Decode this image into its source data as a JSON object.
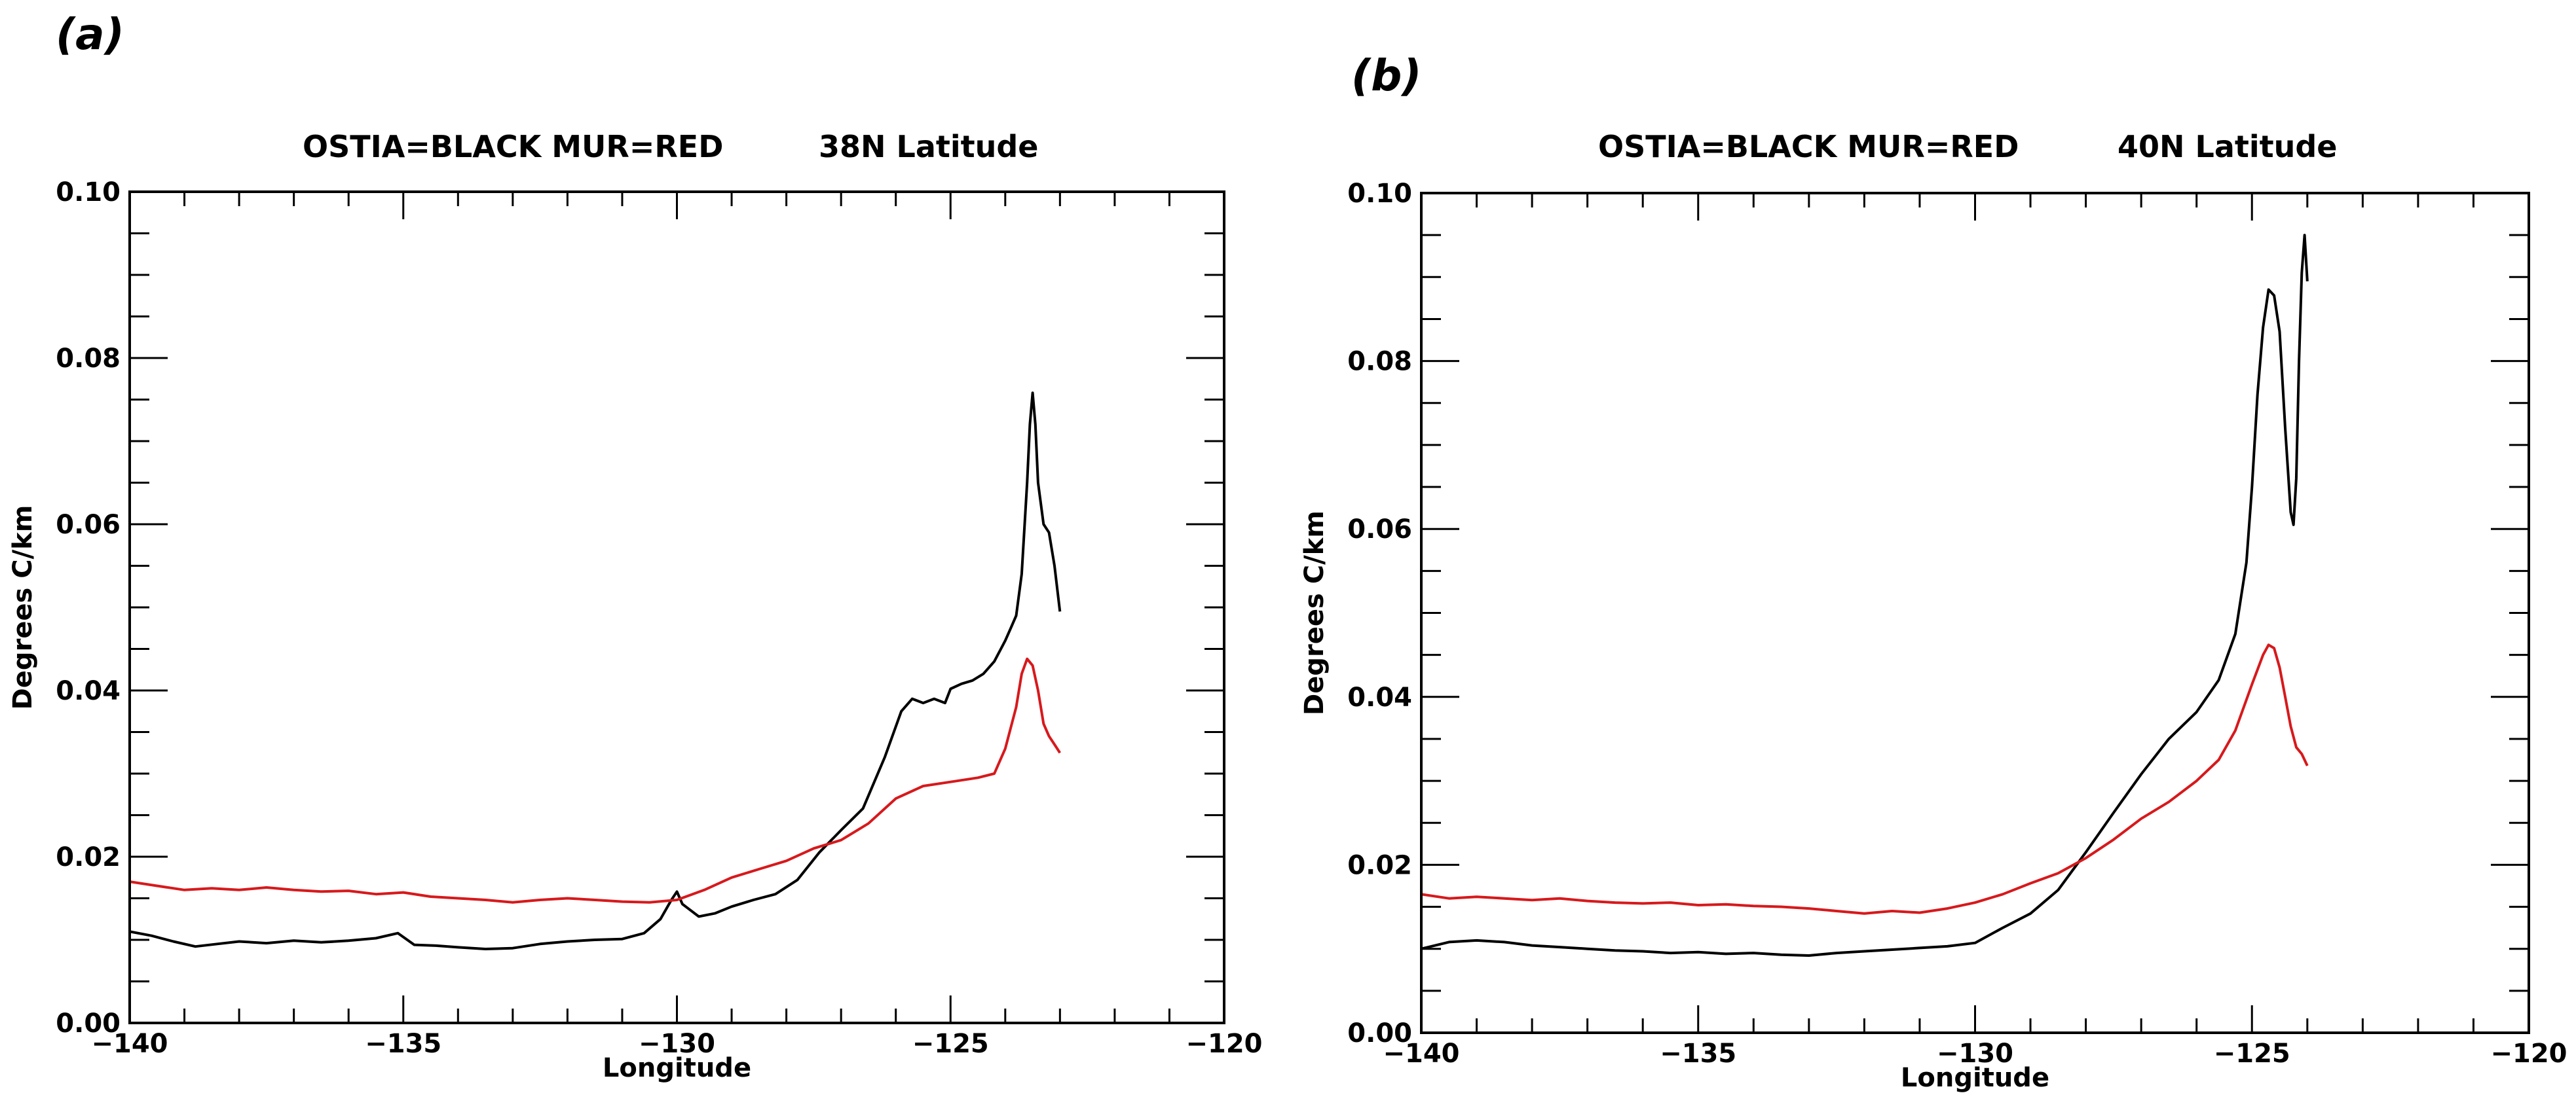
{
  "chart_data": [
    {
      "panel_label": "(a)",
      "type": "line",
      "title_left": "OSTIA=BLACK MUR=RED",
      "title_right": "38N Latitude",
      "xlabel": "Longitude",
      "ylabel": "Degrees C/km",
      "xlim": [
        -140,
        -120
      ],
      "ylim": [
        0.0,
        0.1
      ],
      "xticks": [
        -140,
        -135,
        -130,
        -125,
        -120
      ],
      "xtick_labels": [
        "−140",
        "−135",
        "−130",
        "−125",
        "−120"
      ],
      "yticks": [
        0.0,
        0.02,
        0.04,
        0.06,
        0.08,
        0.1
      ],
      "ytick_labels": [
        "0.00",
        "0.02",
        "0.04",
        "0.06",
        "0.08",
        "0.10"
      ],
      "series": [
        {
          "name": "OSTIA",
          "color": "#000000",
          "x": [
            -140,
            -139.6,
            -139.2,
            -138.8,
            -138.4,
            -138,
            -137.5,
            -137,
            -136.5,
            -136,
            -135.5,
            -135.1,
            -134.8,
            -134.4,
            -134,
            -133.5,
            -133,
            -132.5,
            -132,
            -131.5,
            -131,
            -130.6,
            -130.3,
            -130.1,
            -130.0,
            -129.9,
            -129.8,
            -129.6,
            -129.3,
            -129,
            -128.6,
            -128.2,
            -127.8,
            -127.4,
            -127,
            -126.6,
            -126.2,
            -125.9,
            -125.7,
            -125.5,
            -125.3,
            -125.1,
            -125,
            -124.8,
            -124.6,
            -124.4,
            -124.2,
            -124,
            -123.9,
            -123.8,
            -123.7,
            -123.6,
            -123.55,
            -123.5,
            -123.45,
            -123.4,
            -123.3,
            -123.2,
            -123.1,
            -123.0
          ],
          "y": [
            0.011,
            0.0105,
            0.0098,
            0.0092,
            0.0095,
            0.0098,
            0.0096,
            0.0099,
            0.0097,
            0.0099,
            0.0102,
            0.0108,
            0.0094,
            0.0093,
            0.0091,
            0.0089,
            0.009,
            0.0095,
            0.0098,
            0.01,
            0.0101,
            0.0108,
            0.0125,
            0.0148,
            0.0158,
            0.0143,
            0.0138,
            0.0128,
            0.0132,
            0.014,
            0.0148,
            0.0155,
            0.0172,
            0.0205,
            0.0232,
            0.0258,
            0.032,
            0.0375,
            0.039,
            0.0385,
            0.039,
            0.0385,
            0.0402,
            0.0408,
            0.0412,
            0.042,
            0.0435,
            0.046,
            0.0475,
            0.049,
            0.054,
            0.065,
            0.072,
            0.0758,
            0.072,
            0.065,
            0.06,
            0.059,
            0.055,
            0.0495
          ]
        },
        {
          "name": "MUR",
          "color": "#d7191c",
          "x": [
            -140,
            -139.5,
            -139,
            -138.5,
            -138,
            -137.5,
            -137,
            -136.5,
            -136,
            -135.5,
            -135,
            -134.5,
            -134,
            -133.5,
            -133,
            -132.5,
            -132,
            -131.5,
            -131,
            -130.5,
            -130,
            -129.5,
            -129,
            -128.5,
            -128,
            -127.5,
            -127,
            -126.5,
            -126,
            -125.5,
            -125,
            -124.5,
            -124.2,
            -124,
            -123.8,
            -123.7,
            -123.6,
            -123.5,
            -123.4,
            -123.3,
            -123.2,
            -123.1,
            -123.0
          ],
          "y": [
            0.017,
            0.0165,
            0.016,
            0.0162,
            0.016,
            0.0163,
            0.016,
            0.0158,
            0.0159,
            0.0155,
            0.0157,
            0.0152,
            0.015,
            0.0148,
            0.0145,
            0.0148,
            0.015,
            0.0148,
            0.0146,
            0.0145,
            0.0148,
            0.016,
            0.0175,
            0.0185,
            0.0195,
            0.021,
            0.022,
            0.024,
            0.027,
            0.0285,
            0.029,
            0.0295,
            0.03,
            0.033,
            0.038,
            0.042,
            0.0438,
            0.043,
            0.04,
            0.036,
            0.0345,
            0.0335,
            0.0325
          ]
        }
      ]
    },
    {
      "panel_label": "(b)",
      "type": "line",
      "title_left": "OSTIA=BLACK MUR=RED",
      "title_right": "40N Latitude",
      "xlabel": "Longitude",
      "ylabel": "Degrees C/km",
      "xlim": [
        -140,
        -120
      ],
      "ylim": [
        0.0,
        0.1
      ],
      "xticks": [
        -140,
        -135,
        -130,
        -125,
        -120
      ],
      "xtick_labels": [
        "−140",
        "−135",
        "−130",
        "−125",
        "−120"
      ],
      "yticks": [
        0.0,
        0.02,
        0.04,
        0.06,
        0.08,
        0.1
      ],
      "ytick_labels": [
        "0.00",
        "0.02",
        "0.04",
        "0.06",
        "0.08",
        "0.10"
      ],
      "series": [
        {
          "name": "OSTIA",
          "color": "#000000",
          "x": [
            -140,
            -139.5,
            -139,
            -138.5,
            -138,
            -137.5,
            -137,
            -136.5,
            -136,
            -135.5,
            -135,
            -134.5,
            -134,
            -133.5,
            -133,
            -132.5,
            -132,
            -131.5,
            -131,
            -130.5,
            -130,
            -129.5,
            -129,
            -128.5,
            -128,
            -127.5,
            -127,
            -126.5,
            -126,
            -125.6,
            -125.3,
            -125.1,
            -125.0,
            -124.9,
            -124.8,
            -124.7,
            -124.6,
            -124.5,
            -124.4,
            -124.3,
            -124.25,
            -124.2,
            -124.15,
            -124.1,
            -124.05,
            -124.0
          ],
          "y": [
            0.01,
            0.0108,
            0.011,
            0.0108,
            0.0104,
            0.0102,
            0.01,
            0.0098,
            0.0097,
            0.0095,
            0.0096,
            0.0094,
            0.0095,
            0.0093,
            0.0092,
            0.0095,
            0.0097,
            0.0099,
            0.0101,
            0.0103,
            0.0107,
            0.0125,
            0.0142,
            0.017,
            0.0215,
            0.0262,
            0.0308,
            0.035,
            0.0382,
            0.042,
            0.0475,
            0.056,
            0.065,
            0.076,
            0.084,
            0.0885,
            0.0878,
            0.0835,
            0.072,
            0.062,
            0.0605,
            0.066,
            0.08,
            0.0905,
            0.095,
            0.0895
          ]
        },
        {
          "name": "MUR",
          "color": "#d7191c",
          "x": [
            -140,
            -139.5,
            -139,
            -138.5,
            -138,
            -137.5,
            -137,
            -136.5,
            -136,
            -135.5,
            -135,
            -134.5,
            -134,
            -133.5,
            -133,
            -132.5,
            -132,
            -131.5,
            -131,
            -130.5,
            -130,
            -129.5,
            -129,
            -128.5,
            -128,
            -127.5,
            -127,
            -126.5,
            -126,
            -125.6,
            -125.3,
            -125.0,
            -124.8,
            -124.7,
            -124.6,
            -124.5,
            -124.4,
            -124.3,
            -124.2,
            -124.1,
            -124.0
          ],
          "y": [
            0.0165,
            0.016,
            0.0162,
            0.016,
            0.0158,
            0.016,
            0.0157,
            0.0155,
            0.0154,
            0.0155,
            0.0152,
            0.0153,
            0.0151,
            0.015,
            0.0148,
            0.0145,
            0.0142,
            0.0145,
            0.0143,
            0.0148,
            0.0155,
            0.0165,
            0.0178,
            0.019,
            0.0208,
            0.023,
            0.0255,
            0.0275,
            0.03,
            0.0325,
            0.036,
            0.0415,
            0.045,
            0.0462,
            0.0458,
            0.0435,
            0.04,
            0.0365,
            0.034,
            0.0332,
            0.0318
          ]
        }
      ]
    }
  ]
}
